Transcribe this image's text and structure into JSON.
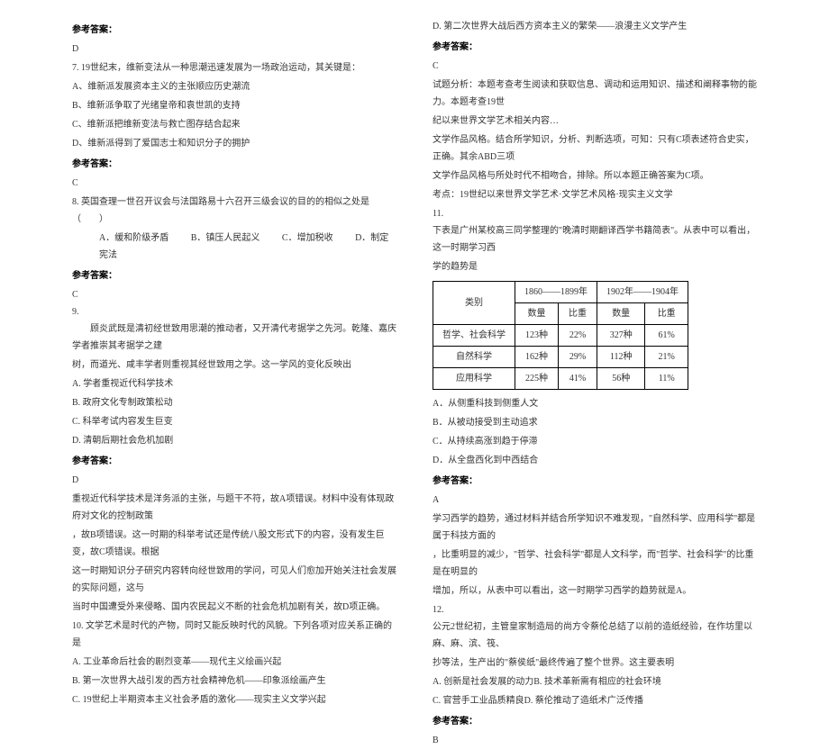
{
  "left": {
    "ans_label": "参考答案：",
    "ans6": "D",
    "q7_stem": "7. 19世纪末，维新变法从一种思潮迅速发展为一场政治运动，其关键是：",
    "q7_a": "A、维新派发展资本主义的主张顺应历史潮流",
    "q7_b": "B、维新派争取了光绪皇帝和袁世凯的支持",
    "q7_c": "C、维新派把维新变法与救亡图存结合起来",
    "q7_d": "D、维新派得到了爱国志士和知识分子的拥护",
    "ans7": "C",
    "q8_stem": "8. 英国查理一世召开议会与法国路易十六召开三级会议的目的的相似之处是（　　）",
    "q8_opts_a": "A．缓和阶级矛盾",
    "q8_opts_b": "B．镇压人民起义",
    "q8_opts_c": "C．增加税收",
    "q8_opts_d": "D．制定宪法",
    "ans8": "C",
    "q9_num": "9.",
    "q9_l1": "　　顾炎武既是清初经世致用思潮的推动者，又开清代考据学之先河。乾隆、嘉庆学者推崇其考据学之建",
    "q9_l2": "树，而道光、咸丰学者则重视其经世致用之学。这一学风的变化反映出",
    "q9_a": "A. 学者重视近代科学技术",
    "q9_b": "B. 政府文化专制政策松动",
    "q9_c": "C. 科举考试内容发生巨变",
    "q9_d": "D. 清朝后期社会危机加剧",
    "ans9": "D",
    "q9_exp_l1": "重视近代科学技术是洋务派的主张，与题干不符，故A项错误。材料中没有体现政府对文化的控制政策",
    "q9_exp_l2": "，故B项错误。这一时期的科举考试还是传统八股文形式下的内容，没有发生巨变，故C项错误。根据",
    "q9_exp_l3": "这一时期知识分子研究内容转向经世致用的学问，可见人们愈加开始关注社会发展的实际问题，这与",
    "q9_exp_l4": "当时中国遭受外来侵略、国内农民起义不断的社会危机加剧有关，故D项正确。",
    "q10_stem": "10. 文学艺术是时代的产物，同时又能反映时代的风貌。下列各项对应关系正确的是",
    "q10_a": "A. 工业革命后社会的剧烈变革——现代主义绘画兴起",
    "q10_b": "B. 第一次世界大战引发的西方社会精神危机——印象派绘画产生",
    "q10_c": "C. 19世纪上半期资本主义社会矛盾的激化——现实主义文学兴起"
  },
  "right": {
    "q10_d": "D. 第二次世界大战后西方资本主义的繁荣——浪漫主义文学产生",
    "ans_label": "参考答案：",
    "ans10": "C",
    "q10_exp_l1": "试题分析：本题考查考生阅读和获取信息、调动和运用知识、描述和阐释事物的能力。本题考查19世",
    "q10_exp_l2": "纪以来世界文学艺术相关内容…",
    "q10_exp_l3": "文学作品风格。结合所学知识，分析、判断选项，可知：只有C项表述符合史实，正确。其余ABD三项",
    "q10_exp_l4": "文学作品风格与所处时代不相吻合，排除。所以本题正确答案为C项。",
    "q10_kd": "考点：19世纪以来世界文学艺术·文学艺术风格·现实主义文学",
    "q11_num": "11.",
    "q11_l1": "下表是广州某校高三同学整理的\"晚清时期翻译西学书籍简表\"。从表中可以看出，这一时期学习西",
    "q11_l2": "学的趋势是",
    "table": {
      "head_cat": "类别",
      "head_p1": "1860——1899年",
      "head_p2": "1902年——1904年",
      "head_qty": "数量",
      "head_pct": "比重",
      "rows": [
        {
          "cat": "哲学、社会科学",
          "q1": "123种",
          "p1": "22%",
          "q2": "327种",
          "p2": "61%"
        },
        {
          "cat": "自然科学",
          "q1": "162种",
          "p1": "29%",
          "q2": "112种",
          "p2": "21%"
        },
        {
          "cat": "应用科学",
          "q1": "225种",
          "p1": "41%",
          "q2": "56种",
          "p2": "11%"
        }
      ]
    },
    "q11_a": "A．从侧重科技到侧重人文",
    "q11_b": "B．从被动接受到主动追求",
    "q11_c": "C．从持续高涨到趋于停滞",
    "q11_d": "D．从全盘西化到中西结合",
    "ans11": "A",
    "q11_exp_l1": "学习西学的趋势，通过材料并结合所学知识不难发现，\"自然科学、应用科学\"都是属于科技方面的",
    "q11_exp_l2": "，比重明显的减少，\"哲学、社会科学\"都是人文科学，而\"哲学、社会科学\"的比重是在明显的",
    "q11_exp_l3": "增加，所以，从表中可以看出，这一时期学习西学的趋势就是A。",
    "q12_num": "12.",
    "q12_l1": "公元2世纪初，主管皇家制造局的尚方令蔡伦总结了以前的造纸经验，在作坊里以麻、麻、滨、筏、",
    "q12_l2": "抄等法，生产出的\"蔡侯纸\"最终传遍了整个世界。这主要表明",
    "q12_a": "A. 创新是社会发展的动力B. 技术革新需有相应的社会环境",
    "q12_c": "C. 官营手工业品质精良D. 蔡伦推动了造纸术广泛传播",
    "ans12": "B"
  }
}
